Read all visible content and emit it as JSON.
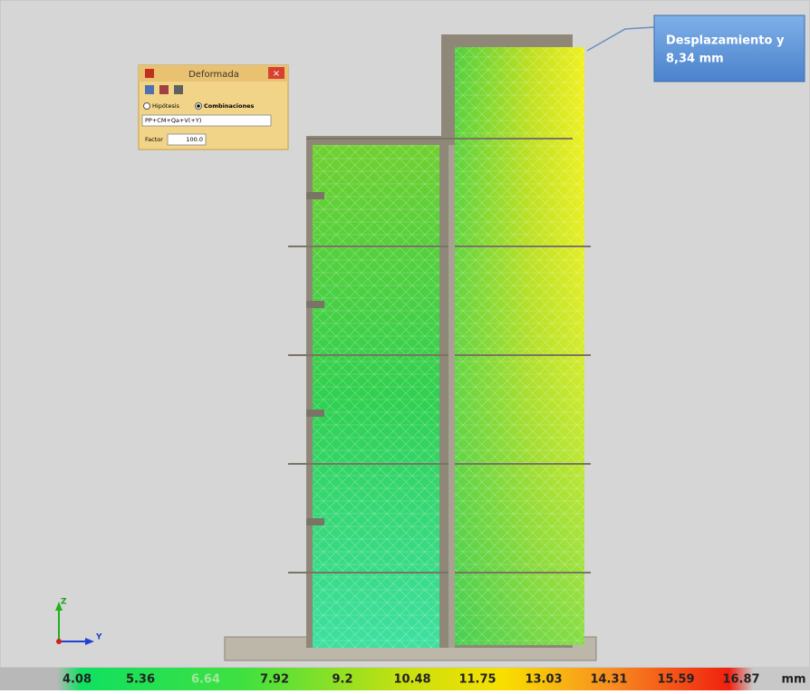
{
  "dialog": {
    "title": "Deformada",
    "options": [
      "Hipótesis",
      "Combinaciones"
    ],
    "combination": "PP+CM+Qa+V(+Y)",
    "factor_label": "Factor",
    "factor_value": "100.0"
  },
  "callout": {
    "lines": [
      "Desplazamiento  y",
      "8,34 mm"
    ]
  },
  "axes": {
    "vertical": "Z",
    "horizontal": "Y"
  },
  "color_scale": {
    "labels": [
      "4.08",
      "5.36",
      "6.64",
      "7.92",
      "9.2",
      "10.48",
      "11.75",
      "13.03",
      "14.31",
      "15.59",
      "16.87"
    ],
    "unit": "mm"
  }
}
